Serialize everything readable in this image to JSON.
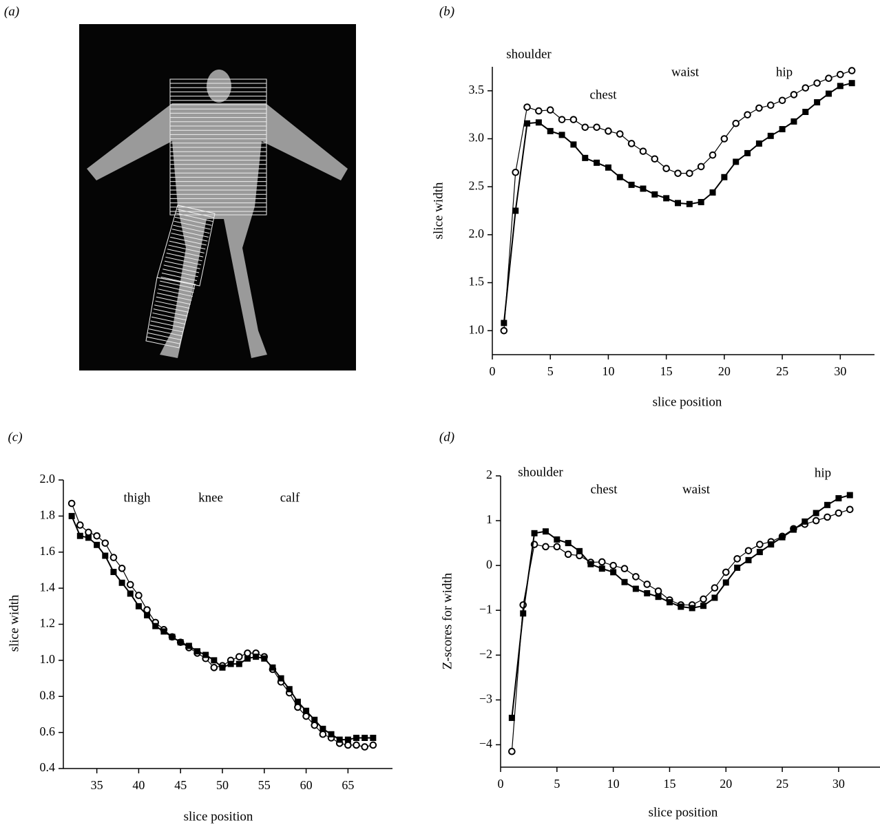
{
  "chart_data": [
    {
      "type": "image",
      "panel": "(a)"
    },
    {
      "type": "line",
      "panel": "(b)",
      "annotations": [
        "shoulder",
        "chest",
        "waist",
        "hip"
      ],
      "xlabel": "slice position",
      "ylabel": "slice width",
      "xlim": [
        0,
        32
      ],
      "ylim": [
        0.75,
        3.75
      ],
      "xticks": [
        0,
        5,
        10,
        15,
        20,
        25,
        30
      ],
      "yticks": [
        {
          "value": 1,
          "label": "1.0"
        },
        1.5,
        {
          "value": 2,
          "label": "2.0"
        },
        2.5,
        {
          "value": 3,
          "label": "3.0"
        },
        3.5
      ],
      "x": [
        1,
        2,
        3,
        4,
        5,
        6,
        7,
        8,
        9,
        10,
        11,
        12,
        13,
        14,
        15,
        16,
        17,
        18,
        19,
        20,
        21,
        22,
        23,
        24,
        25,
        26,
        27,
        28,
        29,
        30,
        31
      ],
      "series": [
        {
          "marker": "circle",
          "color": "#000000",
          "values": [
            1.0,
            2.65,
            3.33,
            3.29,
            3.3,
            3.2,
            3.2,
            3.12,
            3.12,
            3.08,
            3.05,
            2.95,
            2.87,
            2.79,
            2.69,
            2.64,
            2.64,
            2.71,
            2.83,
            3.0,
            3.16,
            3.25,
            3.32,
            3.35,
            3.4,
            3.46,
            3.53,
            3.58,
            3.63,
            3.67,
            3.71
          ]
        },
        {
          "marker": "square",
          "color": "#000000",
          "values": [
            1.08,
            2.25,
            3.16,
            3.17,
            3.08,
            3.04,
            2.94,
            2.8,
            2.75,
            2.7,
            2.6,
            2.52,
            2.48,
            2.42,
            2.38,
            2.33,
            2.32,
            2.34,
            2.44,
            2.6,
            2.76,
            2.85,
            2.95,
            3.03,
            3.1,
            3.18,
            3.28,
            3.38,
            3.47,
            3.55,
            3.58
          ]
        }
      ]
    },
    {
      "type": "line",
      "panel": "(c)",
      "annotations": [
        "thigh",
        "knee",
        "calf"
      ],
      "xlabel": "slice position",
      "ylabel": "slice width",
      "xlim": [
        31,
        69
      ],
      "ylim": [
        0.4,
        2.0
      ],
      "xticks": [
        35,
        40,
        45,
        50,
        55,
        60,
        65
      ],
      "yticks": [
        0.4,
        0.6,
        0.8,
        {
          "value": 1,
          "label": "1.0"
        },
        1.2,
        1.4,
        1.6,
        1.8,
        {
          "value": 2,
          "label": "2.0"
        }
      ],
      "x": [
        32,
        33,
        34,
        35,
        36,
        37,
        38,
        39,
        40,
        41,
        42,
        43,
        44,
        45,
        46,
        47,
        48,
        49,
        50,
        51,
        52,
        53,
        54,
        55,
        56,
        57,
        58,
        59,
        60,
        61,
        62,
        63,
        64,
        65,
        66,
        67,
        68
      ],
      "series": [
        {
          "marker": "circle",
          "color": "#000000",
          "values": [
            1.87,
            1.75,
            1.71,
            1.69,
            1.65,
            1.57,
            1.51,
            1.42,
            1.36,
            1.28,
            1.21,
            1.17,
            1.13,
            1.1,
            1.07,
            1.04,
            1.01,
            0.96,
            0.97,
            1.0,
            1.02,
            1.04,
            1.04,
            1.02,
            0.95,
            0.88,
            0.82,
            0.74,
            0.69,
            0.64,
            0.59,
            0.57,
            0.54,
            0.53,
            0.53,
            0.52,
            0.53
          ]
        },
        {
          "marker": "square",
          "color": "#000000",
          "values": [
            1.8,
            1.69,
            1.68,
            1.64,
            1.58,
            1.49,
            1.43,
            1.37,
            1.3,
            1.25,
            1.19,
            1.16,
            1.13,
            1.1,
            1.08,
            1.05,
            1.03,
            1.0,
            0.96,
            0.98,
            0.98,
            1.01,
            1.02,
            1.01,
            0.96,
            0.9,
            0.84,
            0.77,
            0.72,
            0.67,
            0.62,
            0.59,
            0.56,
            0.56,
            0.57,
            0.57,
            0.57
          ]
        }
      ]
    },
    {
      "type": "line",
      "panel": "(d)",
      "annotations": [
        "shoulder",
        "chest",
        "waist",
        "hip"
      ],
      "xlabel": "slice position",
      "ylabel": "Z-scores for width",
      "xlim": [
        0,
        33
      ],
      "ylim": [
        -4.5,
        2
      ],
      "xticks": [
        0,
        5,
        10,
        15,
        20,
        25,
        30
      ],
      "yticks": [
        {
          "value": -4,
          "label": "−4"
        },
        {
          "value": -3,
          "label": "−3"
        },
        {
          "value": -2,
          "label": "−2"
        },
        {
          "value": -1,
          "label": "−1"
        },
        0,
        1,
        2
      ],
      "x": [
        1,
        2,
        3,
        4,
        5,
        6,
        7,
        8,
        9,
        10,
        11,
        12,
        13,
        14,
        15,
        16,
        17,
        18,
        19,
        20,
        21,
        22,
        23,
        24,
        25,
        26,
        27,
        28,
        29,
        30,
        31
      ],
      "series": [
        {
          "marker": "circle",
          "color": "#000000",
          "values": [
            -4.15,
            -0.88,
            0.47,
            0.42,
            0.42,
            0.25,
            0.22,
            0.07,
            0.08,
            0.0,
            -0.07,
            -0.25,
            -0.42,
            -0.57,
            -0.77,
            -0.88,
            -0.88,
            -0.75,
            -0.5,
            -0.15,
            0.15,
            0.33,
            0.47,
            0.53,
            0.65,
            0.82,
            0.92,
            1.0,
            1.08,
            1.17,
            1.25
          ]
        },
        {
          "marker": "square",
          "color": "#000000",
          "values": [
            -3.4,
            -1.07,
            0.72,
            0.76,
            0.58,
            0.5,
            0.32,
            0.03,
            -0.07,
            -0.15,
            -0.37,
            -0.52,
            -0.62,
            -0.7,
            -0.82,
            -0.92,
            -0.95,
            -0.9,
            -0.72,
            -0.38,
            -0.05,
            0.12,
            0.3,
            0.47,
            0.63,
            0.8,
            0.98,
            1.17,
            1.35,
            1.5,
            1.57
          ]
        }
      ]
    }
  ]
}
